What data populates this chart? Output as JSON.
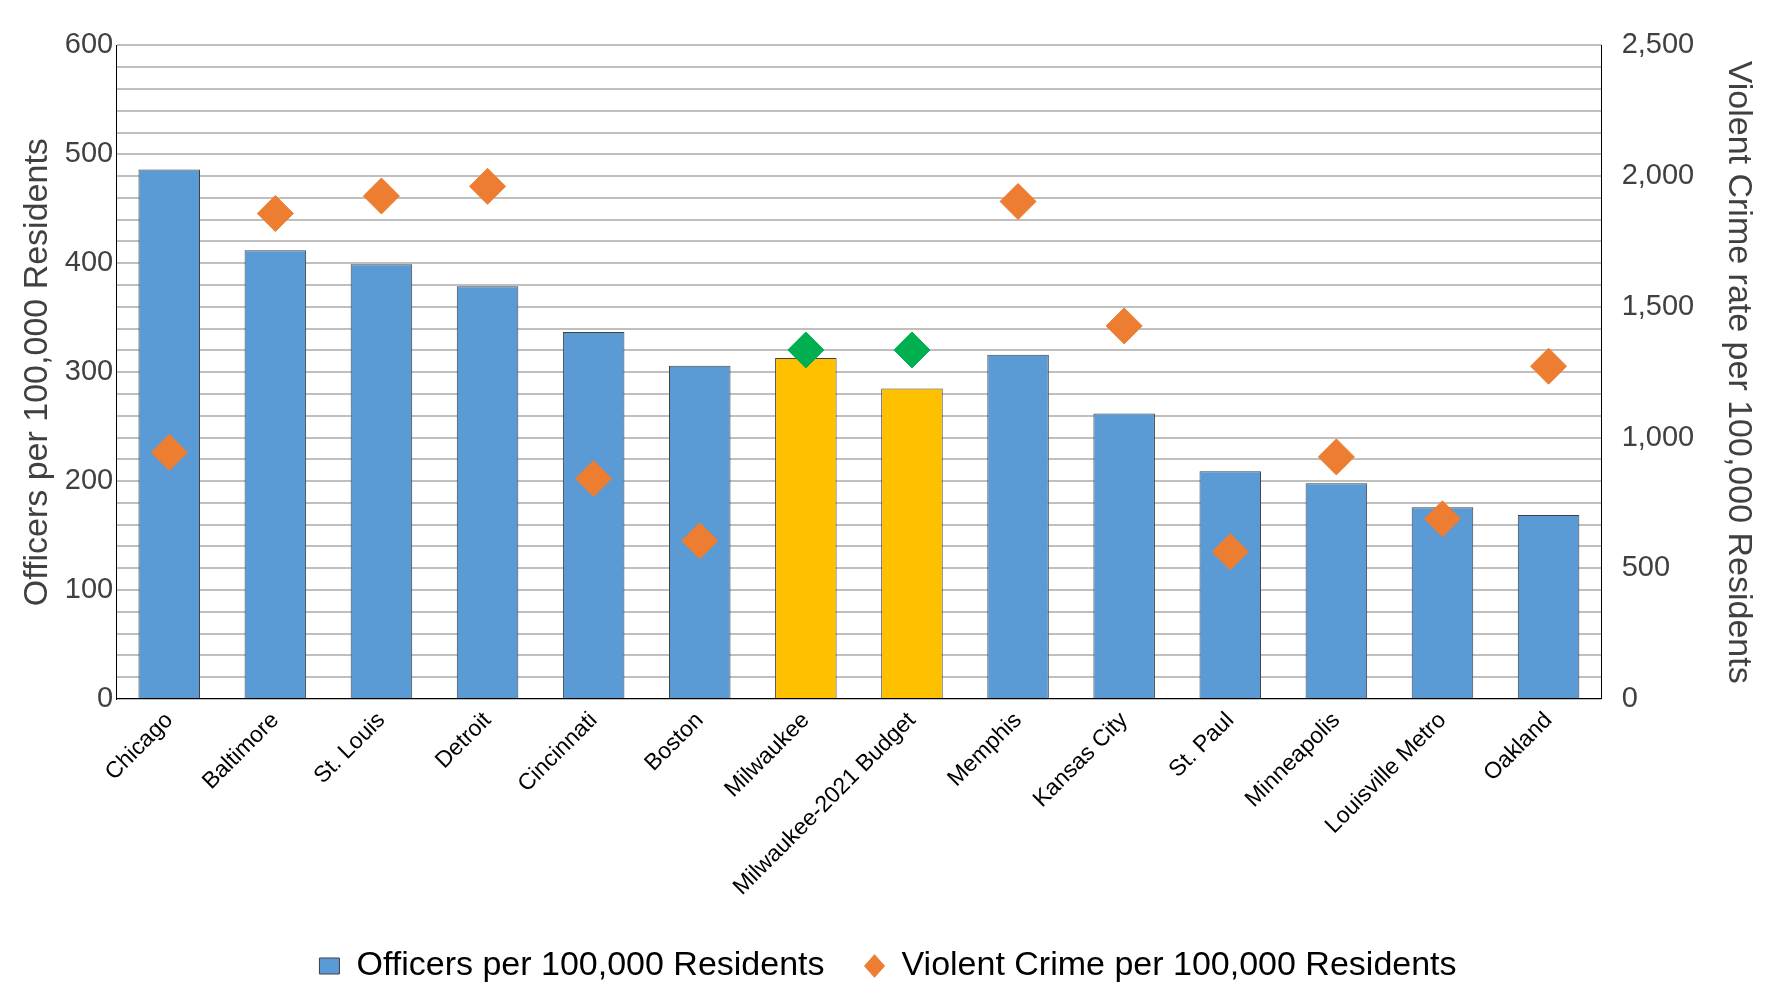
{
  "chart_data": {
    "type": "bar",
    "ylabel": "Officers per 100,000 Residents",
    "y2label": "Violent Crime rate per 100,000 Residents",
    "categories": [
      "Chicago",
      "Baltimore",
      "St. Louis",
      "Detroit",
      "Cincinnati",
      "Boston",
      "Milwaukee",
      "Milwaukee-2021 Budget",
      "Memphis",
      "Kansas City",
      "St. Paul",
      "Minneapolis",
      "Louisville Metro",
      "Oakland"
    ],
    "series": [
      {
        "name": "Officers per 100,000 Residents",
        "color": "#5b9bd5",
        "colors": [
          "#5b9bd5",
          "#5b9bd5",
          "#5b9bd5",
          "#5b9bd5",
          "#5b9bd5",
          "#5b9bd5",
          "#ffc000",
          "#ffc000",
          "#5b9bd5",
          "#5b9bd5",
          "#5b9bd5",
          "#5b9bd5",
          "#5b9bd5",
          "#5b9bd5"
        ],
        "values": [
          486,
          412,
          399,
          379,
          337,
          306,
          313,
          285,
          316,
          262,
          209,
          198,
          176,
          169
        ]
      },
      {
        "name": "Violent Crime per 100,000 Residents",
        "type": "scatter",
        "axis": "y2",
        "color": "#ed7d31",
        "colors": [
          "#ed7d31",
          "#ed7d31",
          "#ed7d31",
          "#ed7d31",
          "#ed7d31",
          "#ed7d31",
          "#00b050",
          "#00b050",
          "#ed7d31",
          "#ed7d31",
          "#ed7d31",
          "#ed7d31",
          "#ed7d31",
          "#ed7d31"
        ],
        "values": [
          943,
          1857,
          1924,
          1961,
          843,
          605,
          1335,
          1335,
          1903,
          1427,
          563,
          926,
          689,
          1273
        ]
      }
    ],
    "ylim": [
      0,
      600
    ],
    "yticks": [
      0,
      {
        "value": 20,
        "label": null
      },
      {
        "value": 40,
        "label": null
      },
      {
        "value": 60,
        "label": null
      },
      {
        "value": 80,
        "label": null
      },
      100,
      {
        "value": 120,
        "label": null
      },
      {
        "value": 140,
        "label": null
      },
      {
        "value": 160,
        "label": null
      },
      {
        "value": 180,
        "label": null
      },
      200,
      {
        "value": 220,
        "label": null
      },
      {
        "value": 240,
        "label": null
      },
      {
        "value": 260,
        "label": null
      },
      {
        "value": 280,
        "label": null
      },
      300,
      {
        "value": 320,
        "label": null
      },
      {
        "value": 340,
        "label": null
      },
      {
        "value": 360,
        "label": null
      },
      {
        "value": 380,
        "label": null
      },
      400,
      {
        "value": 420,
        "label": null
      },
      {
        "value": 440,
        "label": null
      },
      {
        "value": 460,
        "label": null
      },
      {
        "value": 480,
        "label": null
      },
      500,
      {
        "value": 520,
        "label": null
      },
      {
        "value": 540,
        "label": null
      },
      {
        "value": 560,
        "label": null
      },
      {
        "value": 580,
        "label": null
      },
      600
    ],
    "y2lim": [
      0,
      2500
    ],
    "y2ticks": [
      0,
      500,
      {
        "value": 1000,
        "label": "1,000"
      },
      {
        "value": 1500,
        "label": "1,500"
      },
      {
        "value": 2000,
        "label": "2,000"
      },
      {
        "value": 2500,
        "label": "2,500"
      }
    ],
    "grid": "y",
    "legend": "bottom",
    "marker": "diamond"
  }
}
